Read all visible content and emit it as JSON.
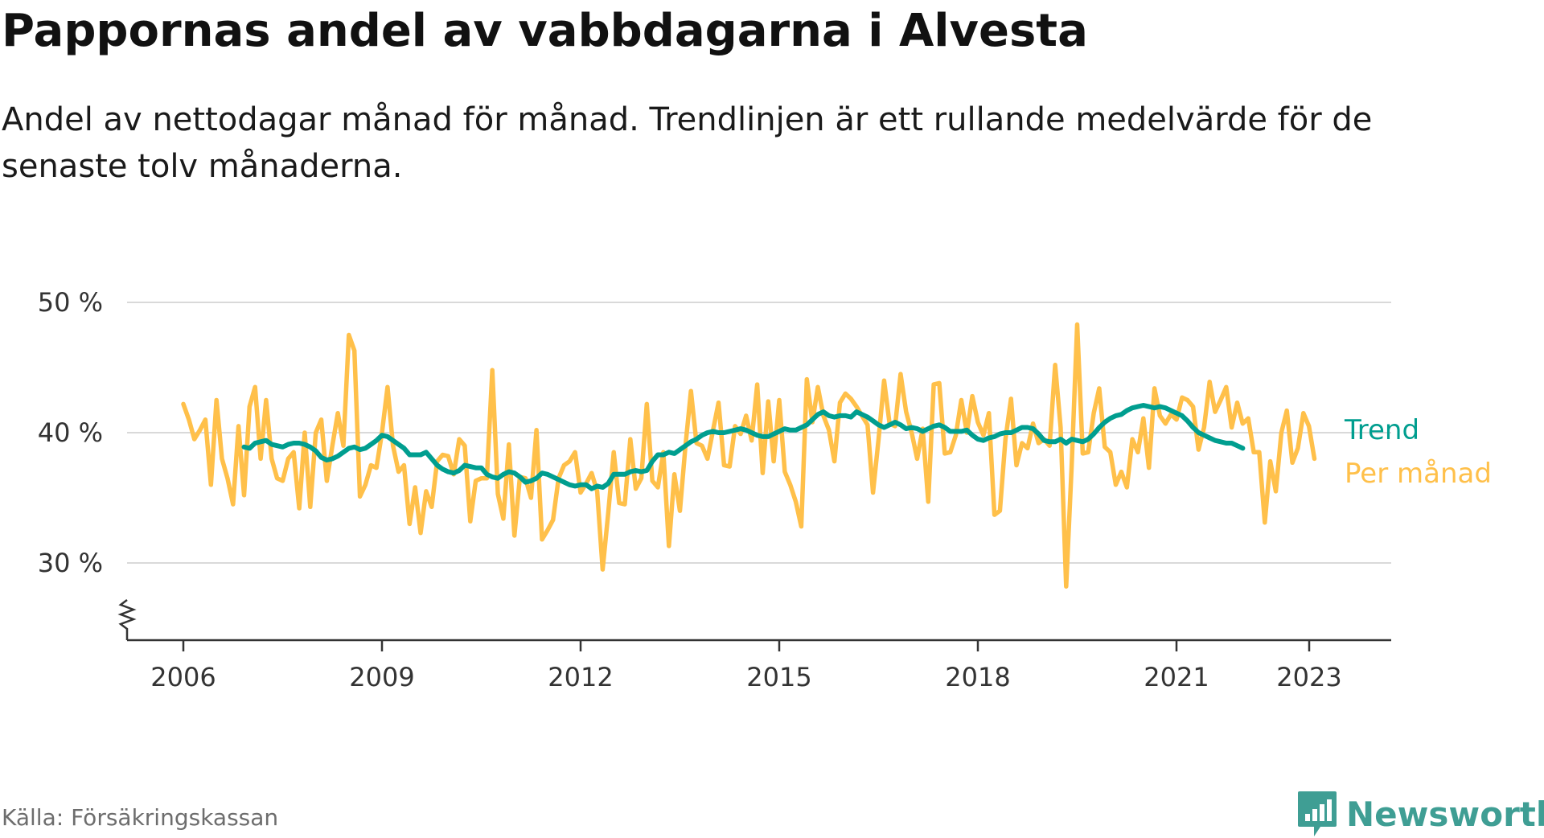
{
  "header": {
    "title": "Pappornas andel av vabbdagarna i Alvesta",
    "subtitle": "Andel av nettodagar månad för månad. Trendlinjen är ett rullande medelvärde för de senaste tolv månaderna."
  },
  "footer": {
    "source": "Källa: Försäkringskassan",
    "brand": "Newsworthy",
    "brand_icon": "bar-chart-icon"
  },
  "colors": {
    "trend": "#009e8f",
    "monthly": "#ffc04a",
    "grid": "#d9d9d9",
    "axis": "#333333",
    "brand": "#3f9e94"
  },
  "chart_data": {
    "type": "line",
    "title": "Pappornas andel av vabbdagarna i Alvesta",
    "y_unit": "%",
    "ylim": [
      24,
      50
    ],
    "y_ticks": [
      30,
      40,
      50
    ],
    "y_tick_labels": [
      "30 %",
      "40 %",
      "50 %"
    ],
    "x_ticks": [
      2006,
      2009,
      2012,
      2015,
      2018,
      2021,
      2023
    ],
    "x_tick_labels": [
      "2006",
      "2009",
      "2012",
      "2015",
      "2018",
      "2021",
      "2023"
    ],
    "grid": "horizontal",
    "y_axis_break": true,
    "series": [
      {
        "name": "Per månad",
        "color": "#ffc04a",
        "start": 2006.0,
        "step_months": 1,
        "values": [
          42.2,
          41.0,
          39.5,
          40.2,
          41.0,
          36.0,
          42.5,
          38.0,
          36.5,
          34.5,
          40.5,
          35.2,
          42.0,
          43.5,
          38.0,
          42.5,
          38.0,
          36.5,
          36.3,
          38.0,
          38.5,
          34.2,
          40.0,
          34.3,
          40.0,
          41.0,
          36.3,
          39.0,
          41.5,
          39.0,
          47.5,
          46.3,
          35.1,
          36.0,
          37.5,
          37.3,
          40.0,
          43.5,
          39.0,
          37.0,
          37.5,
          33.0,
          35.8,
          32.3,
          35.5,
          34.3,
          37.8,
          38.3,
          38.2,
          36.8,
          39.5,
          39.0,
          33.2,
          36.3,
          36.5,
          36.5,
          44.8,
          35.3,
          33.4,
          39.1,
          32.1,
          36.6,
          36.5,
          35.0,
          40.2,
          31.8,
          32.5,
          33.3,
          36.5,
          37.5,
          37.8,
          38.5,
          35.4,
          36.1,
          36.9,
          35.5,
          29.5,
          33.8,
          38.5,
          34.6,
          34.5,
          39.5,
          35.7,
          36.5,
          42.2,
          36.3,
          35.8,
          38.5,
          31.3,
          36.8,
          34.0,
          39.0,
          43.2,
          39.2,
          39.0,
          38.0,
          40.2,
          42.3,
          37.5,
          37.4,
          40.5,
          39.9,
          41.3,
          39.4,
          43.7,
          36.9,
          42.4,
          37.8,
          42.5,
          37.0,
          36.0,
          34.7,
          32.8,
          44.1,
          40.8,
          43.5,
          41.3,
          40.2,
          37.8,
          42.3,
          43.0,
          42.6,
          42.0,
          41.3,
          40.6,
          35.4,
          39.5,
          44.0,
          40.7,
          40.5,
          44.5,
          41.6,
          40.0,
          38.0,
          40.3,
          34.7,
          43.7,
          43.8,
          38.4,
          38.5,
          39.8,
          42.5,
          40.0,
          42.8,
          40.8,
          39.8,
          41.5,
          33.7,
          34.0,
          39.5,
          42.6,
          37.5,
          39.2,
          38.8,
          40.7,
          39.2,
          39.5,
          39.0,
          45.2,
          40.4,
          28.2,
          37.4,
          48.3,
          38.4,
          38.5,
          41.5,
          43.4,
          38.9,
          38.5,
          36.0,
          37.0,
          35.8,
          39.5,
          38.5,
          41.1,
          37.3,
          43.4,
          41.3,
          40.7,
          41.4,
          41.0,
          42.7,
          42.5,
          42.0,
          38.7,
          40.4,
          43.9,
          41.6,
          42.5,
          43.5,
          40.4,
          42.3,
          40.7,
          41.1,
          38.5,
          38.5,
          33.1,
          37.8,
          35.5,
          40.0,
          41.7,
          37.7,
          38.8,
          41.5,
          40.5,
          38.0
        ]
      },
      {
        "name": "Trend",
        "color": "#009e8f",
        "start": 2006.917,
        "step_months": 1,
        "values": [
          38.9,
          38.8,
          39.2,
          39.3,
          39.4,
          39.1,
          39.0,
          38.9,
          39.1,
          39.2,
          39.2,
          39.1,
          38.9,
          38.6,
          38.1,
          37.9,
          38.0,
          38.2,
          38.5,
          38.8,
          38.9,
          38.7,
          38.8,
          39.1,
          39.4,
          39.8,
          39.7,
          39.4,
          39.1,
          38.8,
          38.3,
          38.3,
          38.3,
          38.5,
          38.0,
          37.5,
          37.2,
          37.0,
          36.9,
          37.1,
          37.5,
          37.4,
          37.3,
          37.3,
          36.8,
          36.6,
          36.5,
          36.8,
          37.0,
          36.9,
          36.6,
          36.2,
          36.3,
          36.5,
          36.9,
          36.8,
          36.6,
          36.4,
          36.2,
          36.0,
          35.9,
          36.0,
          36.0,
          35.7,
          35.9,
          35.8,
          36.1,
          36.8,
          36.8,
          36.8,
          37.0,
          37.1,
          37.0,
          37.1,
          37.8,
          38.3,
          38.3,
          38.5,
          38.4,
          38.7,
          39.0,
          39.3,
          39.5,
          39.8,
          40.0,
          40.1,
          40.0,
          40.0,
          40.1,
          40.2,
          40.3,
          40.2,
          40.0,
          39.8,
          39.7,
          39.7,
          39.9,
          40.1,
          40.3,
          40.2,
          40.2,
          40.4,
          40.6,
          41.0,
          41.4,
          41.6,
          41.3,
          41.2,
          41.3,
          41.3,
          41.2,
          41.6,
          41.4,
          41.2,
          40.9,
          40.6,
          40.4,
          40.6,
          40.8,
          40.6,
          40.3,
          40.4,
          40.3,
          40.1,
          40.3,
          40.5,
          40.6,
          40.4,
          40.1,
          40.1,
          40.1,
          40.2,
          39.8,
          39.5,
          39.4,
          39.6,
          39.7,
          39.9,
          40.0,
          40.0,
          40.2,
          40.4,
          40.4,
          40.3,
          39.9,
          39.4,
          39.3,
          39.3,
          39.5,
          39.2,
          39.5,
          39.4,
          39.3,
          39.5,
          39.9,
          40.4,
          40.8,
          41.1,
          41.3,
          41.4,
          41.7,
          41.9,
          42.0,
          42.1,
          42.0,
          41.9,
          42.0,
          41.9,
          41.7,
          41.5,
          41.3,
          40.9,
          40.4,
          40.0,
          39.8,
          39.6,
          39.4,
          39.3,
          39.2,
          39.2,
          39.0,
          38.8
        ]
      }
    ]
  }
}
